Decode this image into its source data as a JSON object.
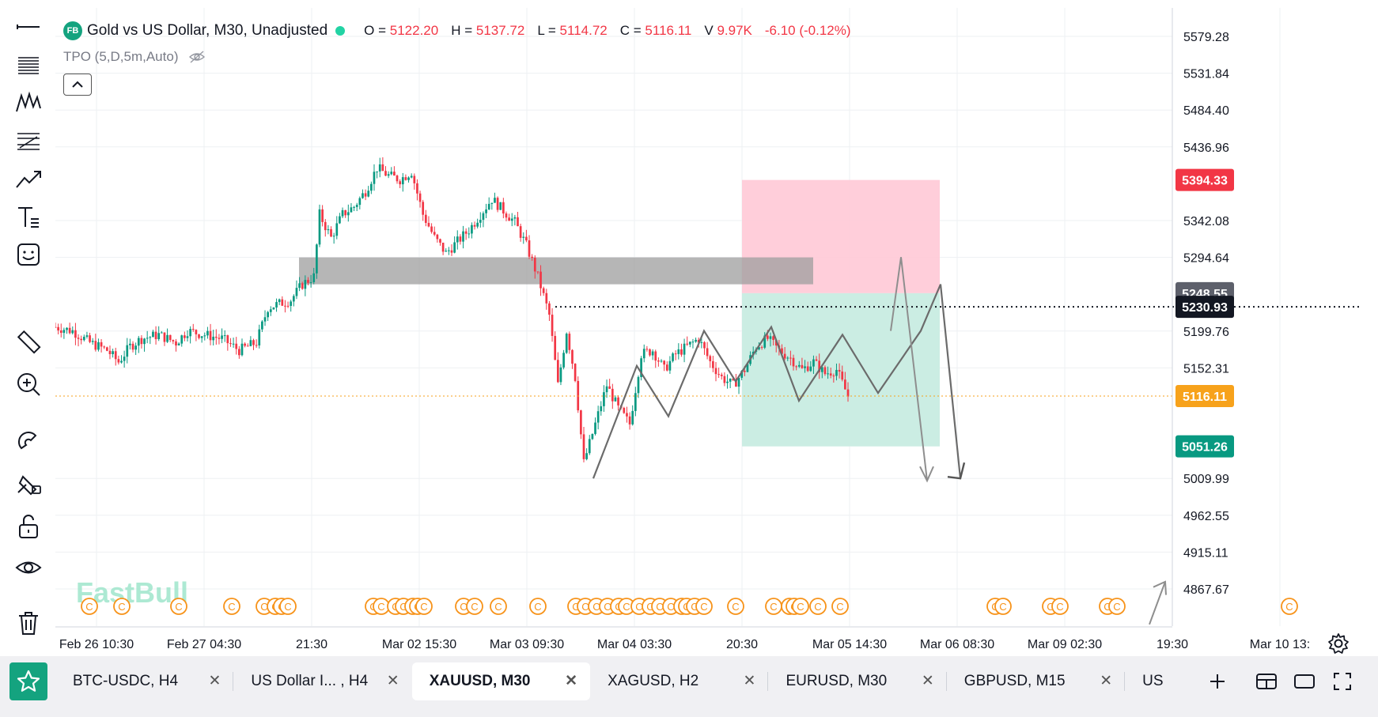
{
  "legend": {
    "badge": "FB",
    "title": "Gold vs US Dollar, M30, Unadjusted",
    "o_label": "O =",
    "o_value": "5122.20",
    "h_label": "H =",
    "h_value": "5137.72",
    "l_label": "L =",
    "l_value": "5114.72",
    "c_label": "C =",
    "c_value": "5116.11",
    "v_label": "V",
    "v_value": "9.97K",
    "change": "-6.10 (-0.12%)"
  },
  "indicator": {
    "label": "TPO (5,D,5m,Auto)"
  },
  "watermark": "FastBull",
  "colors": {
    "up": "#089981",
    "down": "#f23645",
    "stop_zone": "#ffc9d6",
    "target_zone": "#c8ece2",
    "supply_zone": "#9e9e9e",
    "event_marker": "#f7931a",
    "last_price": "#f7a21b"
  },
  "toolbar": {
    "icons": [
      "cursor-line-icon",
      "horizontal-lines-icon",
      "pattern-icon",
      "fib-icon",
      "trend-line-icon",
      "text-tool-icon",
      "emoji-icon",
      "ruler-icon",
      "zoom-icon",
      "magnet-icon",
      "lock-drawing-icon",
      "unlock-icon",
      "eye-icon",
      "trash-icon"
    ]
  },
  "chart_data": {
    "type": "candlestick",
    "symbol": "XAUUSD",
    "timeframe": "M30",
    "ylim": [
      4820,
      5620
    ],
    "price_ticks": [
      "5579.28",
      "5531.84",
      "5484.40",
      "5436.96",
      "5342.08",
      "5294.64",
      "5199.76",
      "5152.31",
      "5009.99",
      "4962.55",
      "4915.11",
      "4867.67"
    ],
    "time_ticks": [
      "Feb 26 10:30",
      "Feb 27 04:30",
      "21:30",
      "Mar 02 15:30",
      "Mar 03 09:30",
      "Mar 04 03:30",
      "20:30",
      "Mar 05 14:30",
      "Mar 06 08:30",
      "Mar 09 02:30",
      "19:30",
      "Mar 10 13:"
    ],
    "price_labels": [
      {
        "text": "5394.33",
        "price": 5394.33,
        "color": "#f23645"
      },
      {
        "text": "5248.55",
        "price": 5248.55,
        "color": "#5d606b"
      },
      {
        "text": "5230.93",
        "price": 5230.93,
        "color": "#131722"
      },
      {
        "text": "5116.11",
        "price": 5116.11,
        "color": "#f7a21b"
      },
      {
        "text": "5051.26",
        "price": 5051.26,
        "color": "#089981"
      }
    ],
    "last_price": 5116.11,
    "position": {
      "entry": 5248.55,
      "stop": 5394.33,
      "target": 5051.26
    },
    "dotted_level": 5230.93,
    "zone": {
      "top": 5294.64,
      "bottom": 5260
    },
    "path": [
      {
        "i": 0,
        "p": 5205
      },
      {
        "i": 6,
        "p": 5200
      },
      {
        "i": 12,
        "p": 5185
      },
      {
        "i": 18,
        "p": 5175
      },
      {
        "i": 22,
        "p": 5160
      },
      {
        "i": 26,
        "p": 5180
      },
      {
        "i": 30,
        "p": 5190
      },
      {
        "i": 36,
        "p": 5195
      },
      {
        "i": 42,
        "p": 5185
      },
      {
        "i": 46,
        "p": 5200
      },
      {
        "i": 52,
        "p": 5195
      },
      {
        "i": 58,
        "p": 5190
      },
      {
        "i": 64,
        "p": 5175
      },
      {
        "i": 70,
        "p": 5185
      },
      {
        "i": 74,
        "p": 5230
      },
      {
        "i": 78,
        "p": 5235
      },
      {
        "i": 82,
        "p": 5240
      },
      {
        "i": 86,
        "p": 5260
      },
      {
        "i": 90,
        "p": 5270
      },
      {
        "i": 92,
        "p": 5350
      },
      {
        "i": 96,
        "p": 5320
      },
      {
        "i": 100,
        "p": 5350
      },
      {
        "i": 104,
        "p": 5360
      },
      {
        "i": 108,
        "p": 5380
      },
      {
        "i": 112,
        "p": 5410
      },
      {
        "i": 116,
        "p": 5400
      },
      {
        "i": 120,
        "p": 5395
      },
      {
        "i": 124,
        "p": 5405
      },
      {
        "i": 128,
        "p": 5350
      },
      {
        "i": 132,
        "p": 5320
      },
      {
        "i": 136,
        "p": 5300
      },
      {
        "i": 140,
        "p": 5315
      },
      {
        "i": 144,
        "p": 5330
      },
      {
        "i": 148,
        "p": 5350
      },
      {
        "i": 152,
        "p": 5370
      },
      {
        "i": 156,
        "p": 5355
      },
      {
        "i": 160,
        "p": 5340
      },
      {
        "i": 164,
        "p": 5310
      },
      {
        "i": 168,
        "p": 5270
      },
      {
        "i": 172,
        "p": 5220
      },
      {
        "i": 175,
        "p": 5130
      },
      {
        "i": 178,
        "p": 5200
      },
      {
        "i": 181,
        "p": 5140
      },
      {
        "i": 184,
        "p": 5030
      },
      {
        "i": 188,
        "p": 5080
      },
      {
        "i": 192,
        "p": 5130
      },
      {
        "i": 196,
        "p": 5100
      },
      {
        "i": 200,
        "p": 5080
      },
      {
        "i": 204,
        "p": 5170
      },
      {
        "i": 208,
        "p": 5175
      },
      {
        "i": 212,
        "p": 5150
      },
      {
        "i": 216,
        "p": 5170
      },
      {
        "i": 220,
        "p": 5180
      },
      {
        "i": 224,
        "p": 5190
      },
      {
        "i": 228,
        "p": 5160
      },
      {
        "i": 232,
        "p": 5140
      },
      {
        "i": 236,
        "p": 5130
      },
      {
        "i": 240,
        "p": 5150
      },
      {
        "i": 244,
        "p": 5180
      },
      {
        "i": 248,
        "p": 5190
      },
      {
        "i": 252,
        "p": 5175
      },
      {
        "i": 256,
        "p": 5165
      },
      {
        "i": 260,
        "p": 5150
      },
      {
        "i": 264,
        "p": 5160
      },
      {
        "i": 268,
        "p": 5145
      },
      {
        "i": 272,
        "p": 5150
      },
      {
        "i": 276,
        "p": 5116
      }
    ],
    "projection": [
      {
        "x": 1.0,
        "p": 5020
      },
      {
        "x": 1.06,
        "p": 5140
      },
      {
        "x": 1.12,
        "p": 5190
      },
      {
        "x": 1.17,
        "p": 5100
      },
      {
        "x": 1.27,
        "p": 5205
      },
      {
        "x": 1.37,
        "p": 5120
      },
      {
        "x": 1.49,
        "p": 5210
      },
      {
        "x": 1.56,
        "p": 5125
      },
      {
        "x": 1.7,
        "p": 5200
      },
      {
        "x": 1.76,
        "p": 5250
      },
      {
        "x": 1.82,
        "p": 5010
      }
    ],
    "projection2": [
      {
        "x": 1.85,
        "p": 5200
      },
      {
        "x": 1.88,
        "p": 5300
      },
      {
        "x": 2.04,
        "p": 5000
      }
    ],
    "event_markers": 47
  },
  "tabs": [
    {
      "label": "BTC-USDC, H4",
      "active": false
    },
    {
      "label": "US Dollar I... , H4",
      "active": false
    },
    {
      "label": "XAUUSD, M30",
      "active": true
    },
    {
      "label": "XAGUSD, H2",
      "active": false
    },
    {
      "label": "EURUSD, M30",
      "active": false
    },
    {
      "label": "GBPUSD, M15",
      "active": false
    },
    {
      "label": "US",
      "active": false
    }
  ]
}
